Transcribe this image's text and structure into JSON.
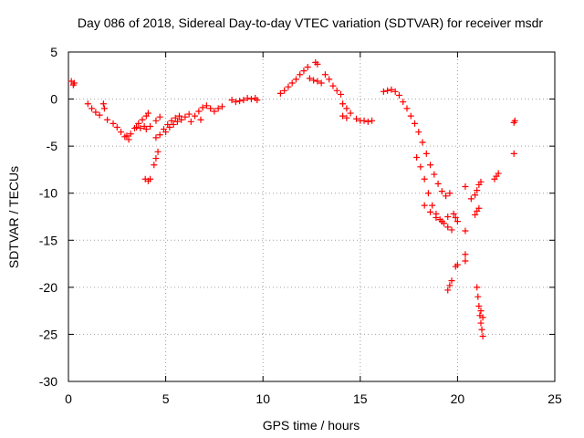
{
  "colors": {
    "series": "#ff0000",
    "frame": "#000000",
    "grid": "#a0a0a0"
  },
  "chart_data": {
    "type": "scatter",
    "title": "Day 086 of 2018, Sidereal Day-to-day VTEC variation (SDTVAR) for receiver msdr",
    "xlabel": "GPS time / hours",
    "ylabel": "SDTVAR / TECUs",
    "xlim": [
      0,
      25
    ],
    "ylim": [
      -30,
      5
    ],
    "xticks": [
      0,
      5,
      10,
      15,
      20,
      25
    ],
    "yticks": [
      5,
      0,
      -5,
      -10,
      -15,
      -20,
      -25,
      -30
    ],
    "xtick_labels": [
      "0",
      "5",
      "10",
      "15",
      "20",
      "25"
    ],
    "ytick_labels": [
      "5",
      "0",
      "-5",
      "-10",
      "-15",
      "-20",
      "-25",
      "-30"
    ],
    "grid": true,
    "marker": "plus",
    "segments": [
      {
        "name": "start",
        "points": [
          [
            0.15,
            1.9
          ],
          [
            0.3,
            1.7
          ],
          [
            0.25,
            1.5
          ]
        ]
      },
      {
        "name": "seg1",
        "points": [
          [
            1.0,
            -0.5
          ],
          [
            1.2,
            -1.0
          ],
          [
            1.4,
            -1.4
          ],
          [
            1.6,
            -1.7
          ],
          [
            1.8,
            -0.5
          ],
          [
            1.85,
            -1.0
          ]
        ]
      },
      {
        "name": "seg2",
        "points": [
          [
            2.0,
            -2.2
          ],
          [
            2.3,
            -2.6
          ],
          [
            2.5,
            -3.0
          ],
          [
            2.7,
            -3.5
          ],
          [
            2.9,
            -4.0
          ],
          [
            3.0,
            -3.9
          ],
          [
            3.1,
            -4.3
          ],
          [
            3.2,
            -3.7
          ],
          [
            3.4,
            -3.1
          ],
          [
            3.6,
            -2.6
          ],
          [
            3.8,
            -2.2
          ],
          [
            4.0,
            -1.8
          ],
          [
            4.1,
            -1.5
          ]
        ]
      },
      {
        "name": "seg3",
        "points": [
          [
            3.5,
            -3.0
          ],
          [
            3.7,
            -3.1
          ],
          [
            3.9,
            -2.9
          ],
          [
            4.0,
            -3.2
          ],
          [
            4.2,
            -2.9
          ]
        ]
      },
      {
        "name": "dip",
        "points": [
          [
            3.95,
            -8.5
          ],
          [
            4.1,
            -8.7
          ],
          [
            4.2,
            -8.5
          ]
        ]
      },
      {
        "name": "seg4",
        "points": [
          [
            4.4,
            -7.0
          ],
          [
            4.5,
            -6.3
          ],
          [
            4.6,
            -5.6
          ],
          [
            4.5,
            -4.1
          ],
          [
            4.7,
            -3.8
          ],
          [
            4.9,
            -3.2
          ],
          [
            5.1,
            -2.7
          ],
          [
            5.3,
            -2.3
          ],
          [
            5.5,
            -2.0
          ],
          [
            5.7,
            -1.8
          ],
          [
            4.5,
            -2.3
          ],
          [
            4.7,
            -1.9
          ]
        ]
      },
      {
        "name": "seg5",
        "points": [
          [
            5.0,
            -3.5
          ],
          [
            5.2,
            -3.0
          ],
          [
            5.4,
            -2.7
          ],
          [
            5.6,
            -2.4
          ],
          [
            5.8,
            -2.2
          ],
          [
            6.0,
            -1.9
          ],
          [
            6.2,
            -1.6
          ]
        ]
      },
      {
        "name": "seg6",
        "points": [
          [
            6.3,
            -2.4
          ],
          [
            6.5,
            -1.8
          ],
          [
            6.7,
            -1.3
          ],
          [
            6.9,
            -0.9
          ],
          [
            7.1,
            -0.7
          ],
          [
            7.3,
            -1.0
          ],
          [
            7.5,
            -1.3
          ],
          [
            7.7,
            -1.0
          ],
          [
            7.9,
            -0.8
          ],
          [
            6.8,
            -2.2
          ]
        ]
      },
      {
        "name": "seg7",
        "points": [
          [
            8.4,
            -0.1
          ],
          [
            8.6,
            -0.3
          ],
          [
            8.8,
            -0.2
          ],
          [
            9.0,
            -0.1
          ],
          [
            9.2,
            0.1
          ],
          [
            9.4,
            0.0
          ],
          [
            9.6,
            0.1
          ],
          [
            9.7,
            -0.1
          ]
        ]
      },
      {
        "name": "seg8",
        "points": [
          [
            10.9,
            0.6
          ],
          [
            11.1,
            0.9
          ],
          [
            11.3,
            1.3
          ],
          [
            11.5,
            1.7
          ],
          [
            11.7,
            2.1
          ],
          [
            11.9,
            2.6
          ],
          [
            12.1,
            3.0
          ],
          [
            12.3,
            3.4
          ],
          [
            12.4,
            2.2
          ],
          [
            12.6,
            2.0
          ],
          [
            12.8,
            1.9
          ],
          [
            12.7,
            3.9
          ],
          [
            12.8,
            3.7
          ]
        ]
      },
      {
        "name": "seg9",
        "points": [
          [
            13.0,
            1.7
          ],
          [
            13.2,
            2.6
          ],
          [
            13.4,
            2.1
          ],
          [
            13.6,
            1.4
          ],
          [
            13.8,
            0.9
          ],
          [
            14.0,
            0.5
          ],
          [
            14.1,
            -0.5
          ],
          [
            14.3,
            -1.0
          ],
          [
            14.5,
            -1.5
          ],
          [
            14.1,
            -1.8
          ],
          [
            14.3,
            -2.0
          ]
        ]
      },
      {
        "name": "seg10",
        "points": [
          [
            14.8,
            -2.1
          ],
          [
            15.0,
            -2.3
          ],
          [
            15.2,
            -2.3
          ],
          [
            15.4,
            -2.4
          ],
          [
            15.6,
            -2.3
          ]
        ]
      },
      {
        "name": "seg11",
        "points": [
          [
            16.2,
            0.8
          ],
          [
            16.4,
            0.9
          ],
          [
            16.6,
            1.0
          ],
          [
            16.8,
            0.8
          ],
          [
            17.0,
            0.4
          ],
          [
            17.2,
            -0.3
          ],
          [
            17.4,
            -1.0
          ],
          [
            17.6,
            -1.8
          ],
          [
            17.8,
            -2.6
          ],
          [
            18.0,
            -3.5
          ],
          [
            18.2,
            -4.6
          ],
          [
            18.4,
            -5.8
          ],
          [
            18.6,
            -7.0
          ],
          [
            18.8,
            -8.0
          ],
          [
            19.0,
            -9.0
          ],
          [
            19.2,
            -9.8
          ],
          [
            19.4,
            -10.3
          ],
          [
            19.6,
            -10.0
          ]
        ]
      },
      {
        "name": "seg12",
        "points": [
          [
            17.9,
            -6.2
          ],
          [
            18.1,
            -7.2
          ],
          [
            18.3,
            -8.5
          ],
          [
            18.5,
            -10.0
          ],
          [
            18.7,
            -11.3
          ],
          [
            18.9,
            -12.2
          ],
          [
            19.1,
            -12.8
          ],
          [
            19.3,
            -13.2
          ],
          [
            19.5,
            -13.6
          ],
          [
            19.7,
            -13.9
          ]
        ]
      },
      {
        "name": "seg13",
        "points": [
          [
            18.3,
            -11.3
          ],
          [
            18.6,
            -12.0
          ],
          [
            18.9,
            -12.6
          ],
          [
            19.2,
            -13.0
          ],
          [
            19.5,
            -12.5
          ],
          [
            19.8,
            -12.2
          ],
          [
            19.9,
            -12.6
          ],
          [
            20.0,
            -13.0
          ]
        ]
      },
      {
        "name": "seg14",
        "points": [
          [
            19.5,
            -20.3
          ],
          [
            19.6,
            -19.8
          ],
          [
            19.7,
            -19.3
          ],
          [
            19.9,
            -17.8
          ],
          [
            20.0,
            -17.6
          ],
          [
            20.4,
            -16.5
          ],
          [
            20.4,
            -17.2
          ],
          [
            20.4,
            -14.0
          ]
        ]
      },
      {
        "name": "seg15",
        "points": [
          [
            20.4,
            -9.3
          ],
          [
            20.7,
            -10.6
          ],
          [
            20.9,
            -10.2
          ],
          [
            21.0,
            -9.7
          ],
          [
            21.1,
            -9.1
          ],
          [
            21.2,
            -8.8
          ],
          [
            20.9,
            -12.3
          ],
          [
            21.0,
            -11.9
          ],
          [
            21.1,
            -11.6
          ]
        ]
      },
      {
        "name": "seg16",
        "points": [
          [
            21.0,
            -20.0
          ],
          [
            21.05,
            -21.0
          ],
          [
            21.1,
            -22.0
          ],
          [
            21.15,
            -23.0
          ],
          [
            21.2,
            -23.8
          ],
          [
            21.25,
            -24.5
          ],
          [
            21.3,
            -25.2
          ],
          [
            21.2,
            -22.5
          ],
          [
            21.3,
            -23.2
          ]
        ]
      },
      {
        "name": "seg17",
        "points": [
          [
            21.9,
            -8.5
          ],
          [
            22.0,
            -8.2
          ],
          [
            22.1,
            -7.9
          ],
          [
            22.9,
            -5.8
          ],
          [
            22.9,
            -2.5
          ],
          [
            22.95,
            -2.3
          ]
        ]
      }
    ]
  }
}
